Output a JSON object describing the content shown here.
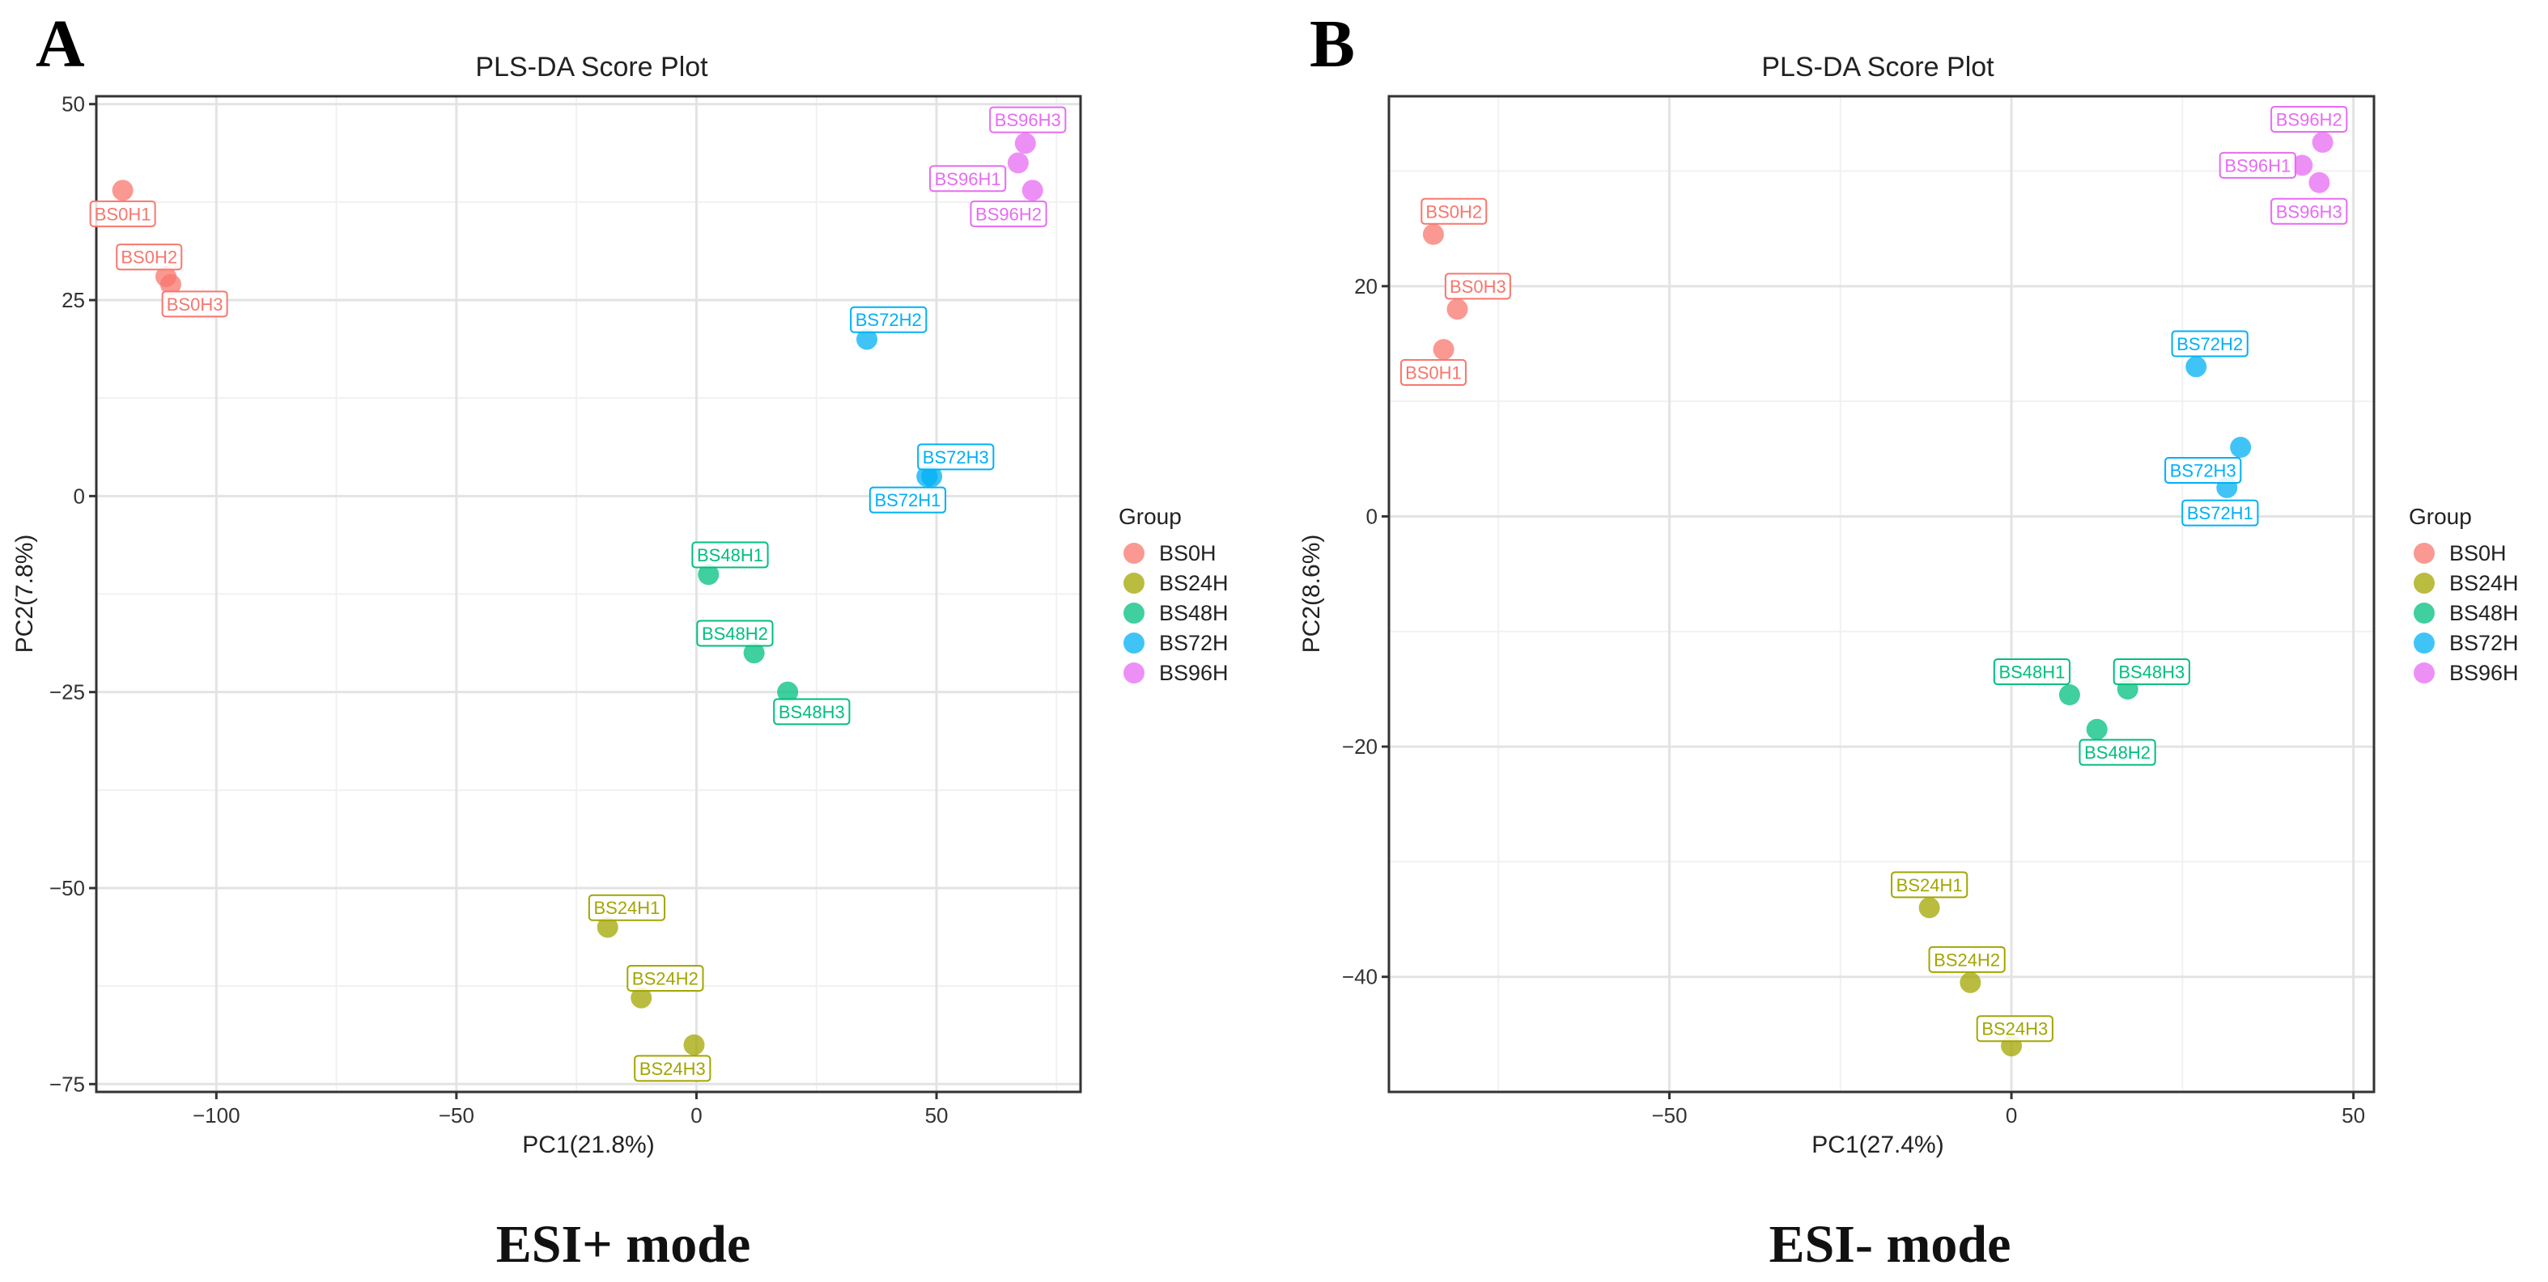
{
  "chart_data": [
    {
      "type": "scatter",
      "panel": "A",
      "title": "PLS-DA Score Plot",
      "xlabel": "PC1(21.8%)",
      "ylabel": "PC2(7.8%)",
      "xlim": [
        -125,
        80
      ],
      "ylim": [
        -76,
        51
      ],
      "xticks": [
        -100,
        -50,
        0,
        50
      ],
      "xtick_labels": [
        "−100",
        "−50",
        "0",
        "50"
      ],
      "yticks": [
        -75,
        -50,
        -25,
        0,
        25,
        50
      ],
      "ytick_labels": [
        "−75",
        "−50",
        "−25",
        "0",
        "25",
        "50"
      ],
      "caption": "ESI+ mode",
      "legend_title": "Group",
      "legend": [
        "BS0H",
        "BS24H",
        "BS48H",
        "BS72H",
        "BS96H"
      ],
      "points": [
        {
          "label": "BS0H1",
          "group": "BS0H",
          "x": -119.5,
          "y": 39,
          "lx": -119.5,
          "ly": 36
        },
        {
          "label": "BS0H2",
          "group": "BS0H",
          "x": -110.5,
          "y": 28,
          "lx": -114,
          "ly": 30.5
        },
        {
          "label": "BS0H3",
          "group": "BS0H",
          "x": -109.5,
          "y": 27,
          "lx": -104.5,
          "ly": 24.5
        },
        {
          "label": "BS24H1",
          "group": "BS24H",
          "x": -18.5,
          "y": -55,
          "lx": -14.5,
          "ly": -52.5
        },
        {
          "label": "BS24H2",
          "group": "BS24H",
          "x": -11.5,
          "y": -64,
          "lx": -6.5,
          "ly": -61.5
        },
        {
          "label": "BS24H3",
          "group": "BS24H",
          "x": -0.5,
          "y": -70,
          "lx": -5,
          "ly": -73
        },
        {
          "label": "BS48H1",
          "group": "BS48H",
          "x": 2.5,
          "y": -10,
          "lx": 7,
          "ly": -7.5
        },
        {
          "label": "BS48H2",
          "group": "BS48H",
          "x": 12,
          "y": -20,
          "lx": 8,
          "ly": -17.5
        },
        {
          "label": "BS48H3",
          "group": "BS48H",
          "x": 19,
          "y": -25,
          "lx": 24,
          "ly": -27.5
        },
        {
          "label": "BS72H1",
          "group": "BS72H",
          "x": 48,
          "y": 2.5,
          "lx": 44,
          "ly": -0.5
        },
        {
          "label": "BS72H2",
          "group": "BS72H",
          "x": 35.5,
          "y": 20,
          "lx": 40,
          "ly": 22.5
        },
        {
          "label": "BS72H3",
          "group": "BS72H",
          "x": 49,
          "y": 2.5,
          "lx": 54,
          "ly": 5
        },
        {
          "label": "BS96H1",
          "group": "BS96H",
          "x": 67,
          "y": 42.5,
          "lx": 56.5,
          "ly": 40.5
        },
        {
          "label": "BS96H2",
          "group": "BS96H",
          "x": 70,
          "y": 39,
          "lx": 65,
          "ly": 36
        },
        {
          "label": "BS96H3",
          "group": "BS96H",
          "x": 68.5,
          "y": 45,
          "lx": 69,
          "ly": 48
        }
      ]
    },
    {
      "type": "scatter",
      "panel": "B",
      "title": "PLS-DA Score Plot",
      "xlabel": "PC1(27.4%)",
      "ylabel": "PC2(8.6%)",
      "xlim": [
        -91,
        53
      ],
      "ylim": [
        -50,
        36.5
      ],
      "xticks": [
        -50,
        0,
        50
      ],
      "xtick_labels": [
        "−50",
        "0",
        "50"
      ],
      "yticks": [
        -40,
        -20,
        0,
        20
      ],
      "ytick_labels": [
        "−40",
        "−20",
        "0",
        "20"
      ],
      "caption": "ESI- mode",
      "legend_title": "Group",
      "legend": [
        "BS0H",
        "BS24H",
        "BS48H",
        "BS72H",
        "BS96H"
      ],
      "points": [
        {
          "label": "BS0H1",
          "group": "BS0H",
          "x": -83,
          "y": 14.5,
          "lx": -84.5,
          "ly": 12.5
        },
        {
          "label": "BS0H2",
          "group": "BS0H",
          "x": -84.5,
          "y": 24.5,
          "lx": -81.5,
          "ly": 26.5
        },
        {
          "label": "BS0H3",
          "group": "BS0H",
          "x": -81,
          "y": 18,
          "lx": -78,
          "ly": 20
        },
        {
          "label": "BS24H1",
          "group": "BS24H",
          "x": -12,
          "y": -34,
          "lx": -12,
          "ly": -32
        },
        {
          "label": "BS24H2",
          "group": "BS24H",
          "x": -6,
          "y": -40.5,
          "lx": -6.5,
          "ly": -38.5
        },
        {
          "label": "BS24H3",
          "group": "BS24H",
          "x": 0,
          "y": -46,
          "lx": 0.5,
          "ly": -44.5
        },
        {
          "label": "BS48H1",
          "group": "BS48H",
          "x": 8.5,
          "y": -15.5,
          "lx": 3,
          "ly": -13.5
        },
        {
          "label": "BS48H2",
          "group": "BS48H",
          "x": 12.5,
          "y": -18.5,
          "lx": 15.5,
          "ly": -20.5
        },
        {
          "label": "BS48H3",
          "group": "BS48H",
          "x": 17,
          "y": -15,
          "lx": 20.5,
          "ly": -13.5
        },
        {
          "label": "BS72H1",
          "group": "BS72H",
          "x": 31.5,
          "y": 2.5,
          "lx": 30.5,
          "ly": 0.3
        },
        {
          "label": "BS72H2",
          "group": "BS72H",
          "x": 27,
          "y": 13,
          "lx": 29,
          "ly": 15
        },
        {
          "label": "BS72H3",
          "group": "BS72H",
          "x": 33.5,
          "y": 6,
          "lx": 28,
          "ly": 4
        },
        {
          "label": "BS96H1",
          "group": "BS96H",
          "x": 42.5,
          "y": 30.5,
          "lx": 36,
          "ly": 30.5
        },
        {
          "label": "BS96H2",
          "group": "BS96H",
          "x": 45.5,
          "y": 32.5,
          "lx": 43.5,
          "ly": 34.5
        },
        {
          "label": "BS96H3",
          "group": "BS96H",
          "x": 45,
          "y": 29,
          "lx": 43.5,
          "ly": 26.5
        }
      ]
    }
  ],
  "group_colors": {
    "BS0H": "#F8766D",
    "BS24H": "#A3A500",
    "BS48H": "#00BF7D",
    "BS72H": "#00B0F6",
    "BS96H": "#E76BF3"
  }
}
